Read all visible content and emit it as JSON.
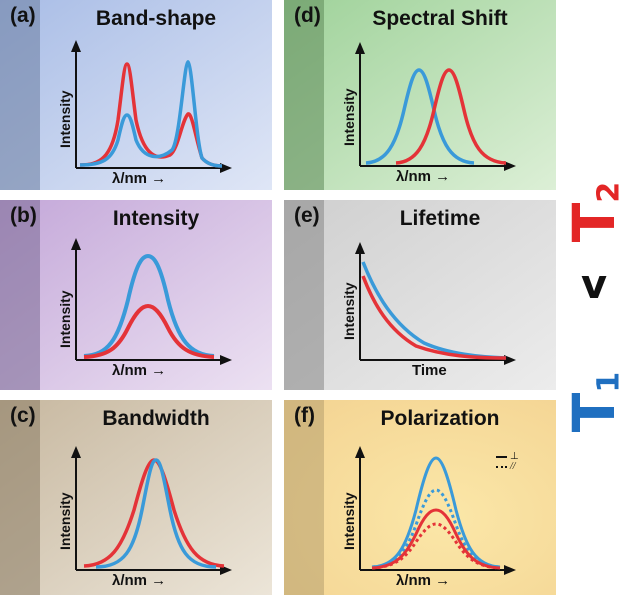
{
  "colors": {
    "red": "#e43338",
    "blue": "#3a9ad9",
    "t1": "#1f6fc0",
    "t2": "#e32626"
  },
  "side_label": {
    "t2": "T",
    "t2_sub": "2",
    "vs": "v",
    "t1": "T",
    "t1_sub": "1"
  },
  "panels": {
    "a": {
      "label": "(a)",
      "title": "Band-shape",
      "ylabel": "Intensity",
      "xlabel": "λ/nm →"
    },
    "b": {
      "label": "(b)",
      "title": "Intensity",
      "ylabel": "Intensity",
      "xlabel": "λ/nm →"
    },
    "c": {
      "label": "(c)",
      "title": "Bandwidth",
      "ylabel": "Intensity",
      "xlabel": "λ/nm →"
    },
    "d": {
      "label": "(d)",
      "title": "Spectral Shift",
      "ylabel": "Intensity",
      "xlabel": "λ/nm →"
    },
    "e": {
      "label": "(e)",
      "title": "Lifetime",
      "ylabel": "Intensity",
      "xlabel": "Time"
    },
    "f": {
      "label": "(f)",
      "title": "Polarization",
      "ylabel": "Intensity",
      "xlabel": "λ/nm →",
      "legend": {
        "perp": "⊥",
        "par": "//"
      }
    }
  }
}
